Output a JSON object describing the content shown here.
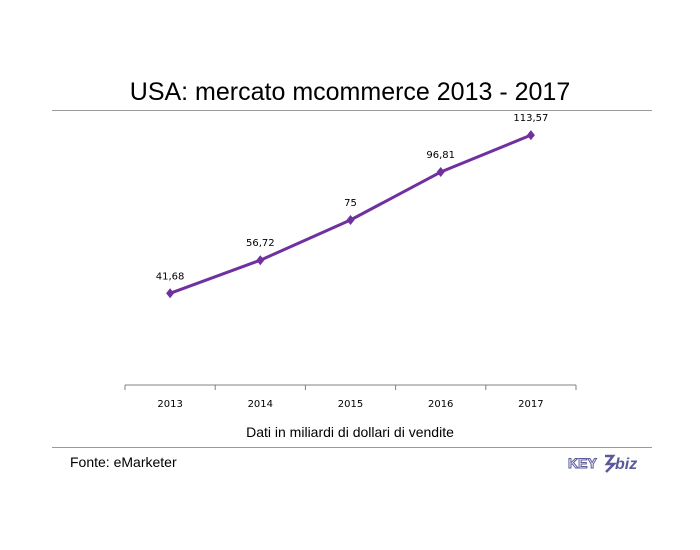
{
  "chart_data": {
    "type": "line",
    "title": "USA: mercato mcommerce 2013 - 2017",
    "xlabel": "Dati in miliardi di dollari di vendite",
    "ylabel": "",
    "categories": [
      "2013",
      "2014",
      "2015",
      "2016",
      "2017"
    ],
    "series": [
      {
        "values": [
          41.68,
          56.72,
          75,
          96.81,
          113.57
        ],
        "labels": [
          "41,68",
          "56,72",
          "75",
          "96,81",
          "113,57"
        ],
        "color": "#7030a0",
        "marker": "diamond"
      }
    ],
    "ylim": [
      0,
      125
    ],
    "grid": false,
    "legend": "none"
  },
  "footer": {
    "source": "Fonte: eMarketer"
  },
  "logo": {
    "text_key": "KEY",
    "text_biz": "biz",
    "color": "#5a5a9a"
  }
}
